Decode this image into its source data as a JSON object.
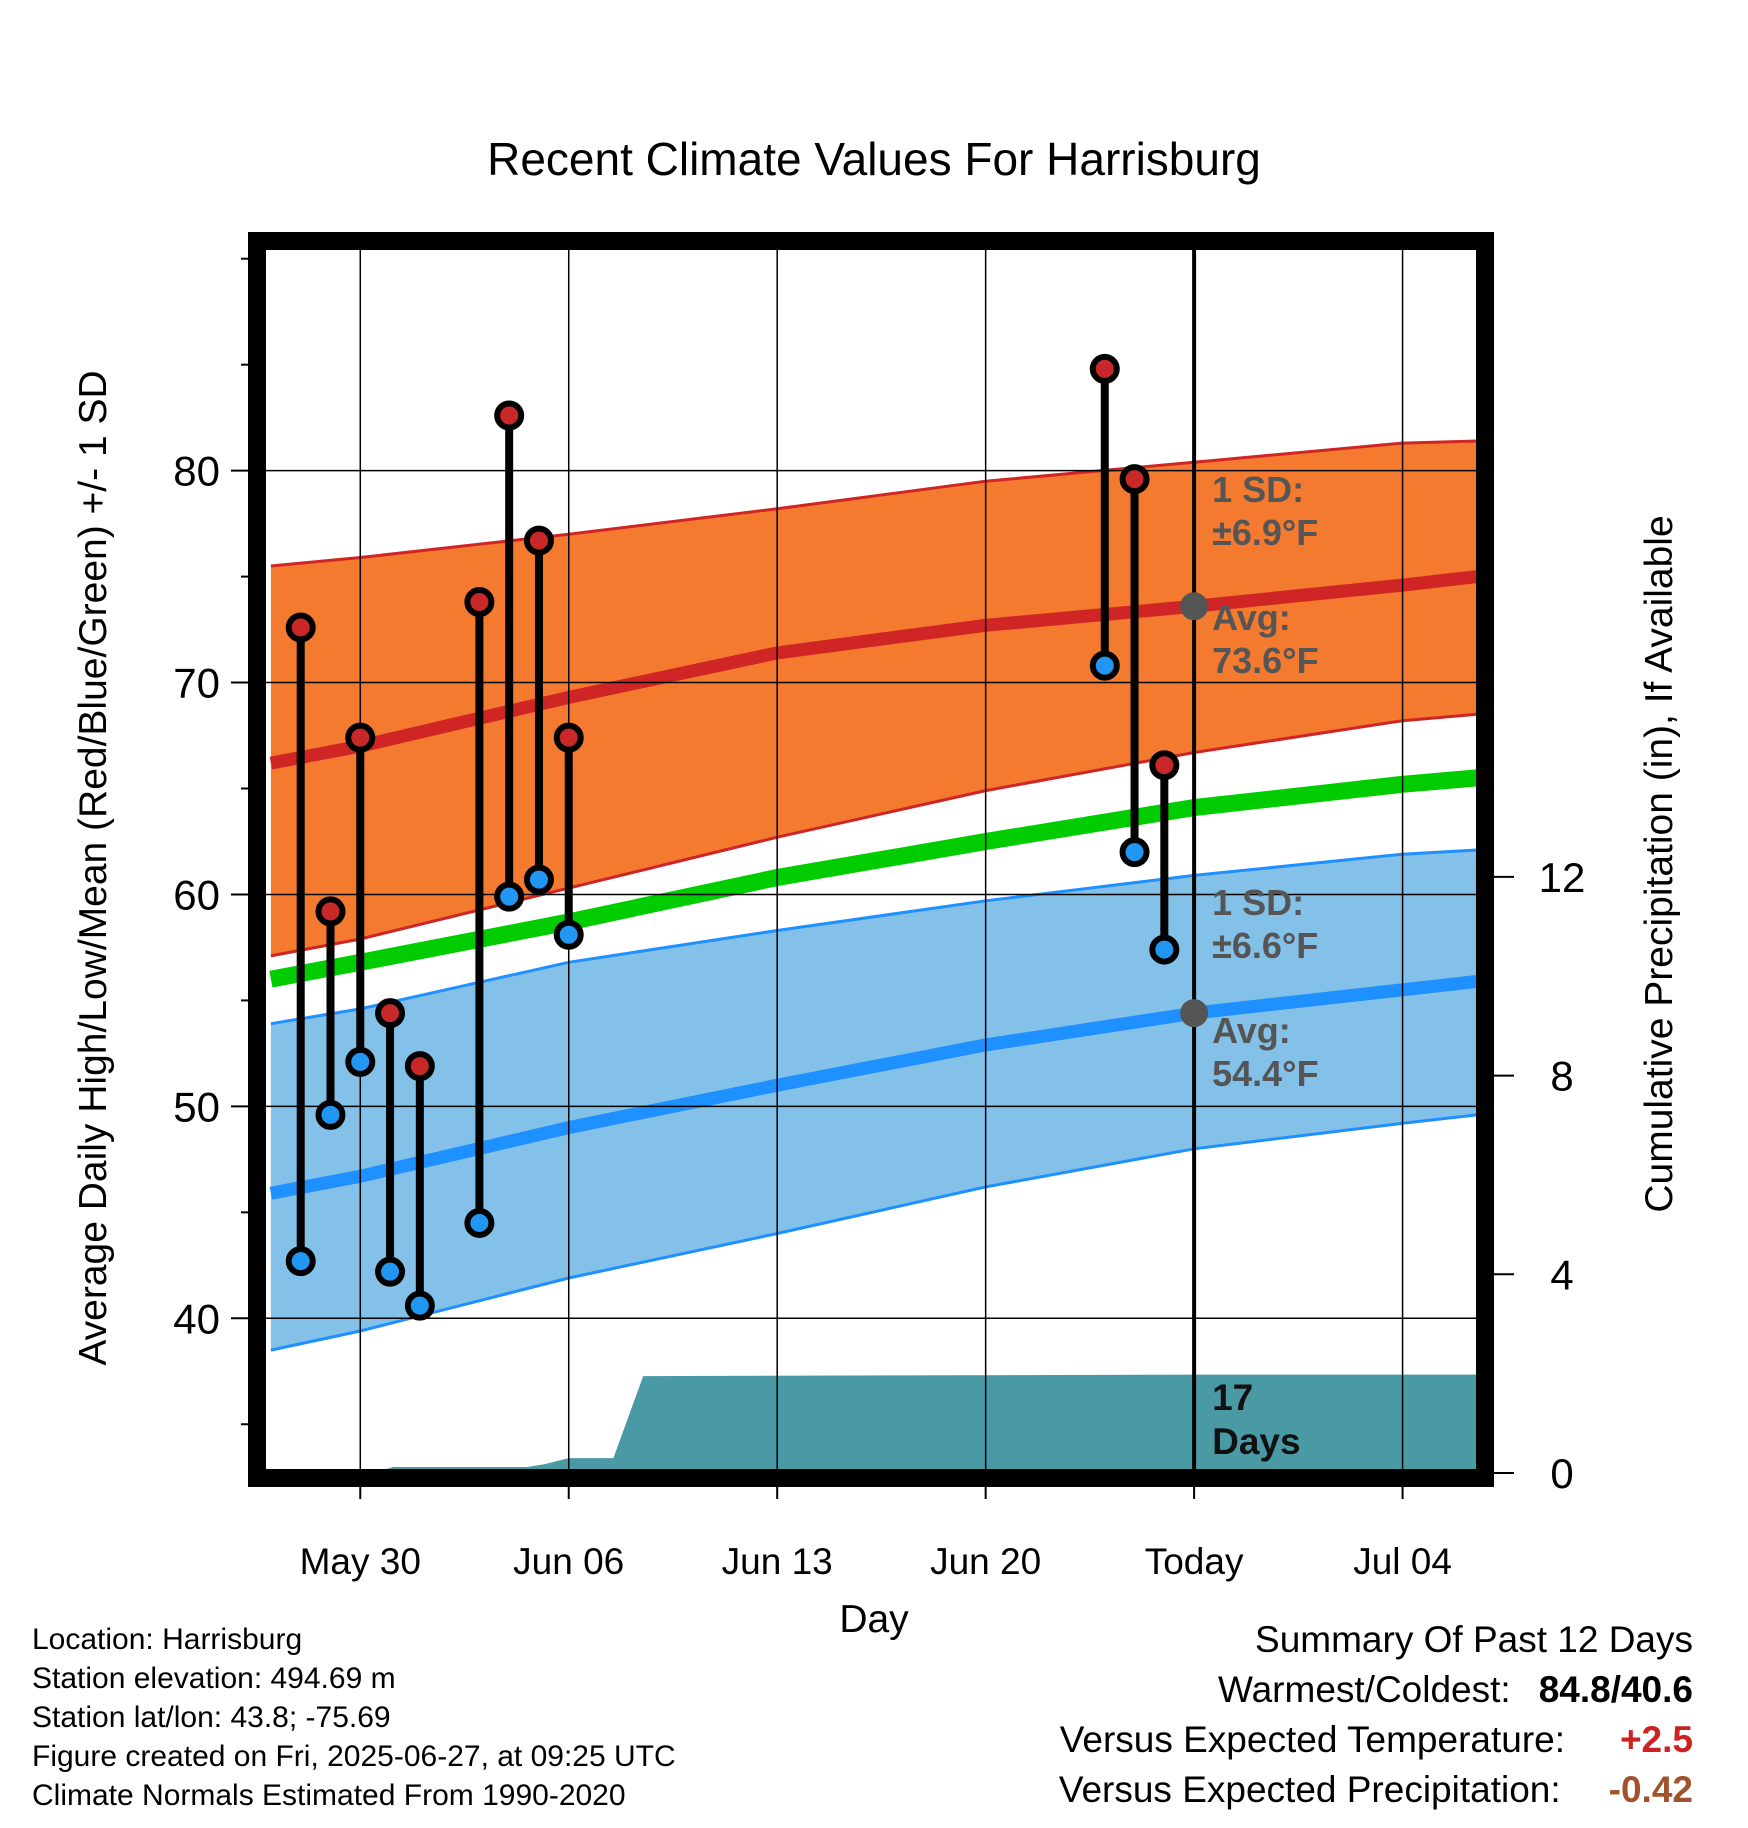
{
  "chart_data": {
    "type": "line",
    "title": "Recent Climate Values For Harrisburg",
    "xlabel": "Day",
    "ylabel": "Average Daily High/Low/Mean (Red/Blue/Green) +/- 1 SD",
    "y2label": "Cumulative Precipitation (in), If Available",
    "xticks": [
      {
        "label": "May 30",
        "day": 0
      },
      {
        "label": "Jun 06",
        "day": 7
      },
      {
        "label": "Jun 13",
        "day": 14
      },
      {
        "label": "Jun 20",
        "day": 21
      },
      {
        "label": "Today",
        "day": 28
      },
      {
        "label": "Jul 04",
        "day": 35
      }
    ],
    "xlim": [
      -3.3,
      37.6
    ],
    "yticks": [
      40,
      50,
      60,
      70,
      80
    ],
    "ylim": [
      32.7,
      90.6
    ],
    "y2ticks": [
      0,
      4,
      8,
      12
    ],
    "y2lim": [
      0,
      24.7
    ],
    "today_day": 28,
    "normals": {
      "days": [
        -3,
        0,
        7,
        14,
        21,
        28,
        35,
        37.5
      ],
      "high_avg": [
        66.2,
        67.0,
        69.3,
        71.4,
        72.7,
        73.6,
        74.6,
        75.0
      ],
      "high_upper": [
        75.5,
        75.9,
        77.0,
        78.2,
        79.5,
        80.4,
        81.3,
        81.4
      ],
      "high_lower": [
        57.1,
        57.9,
        60.3,
        62.7,
        64.9,
        66.7,
        68.2,
        68.5
      ],
      "mean_avg": [
        56.0,
        56.8,
        58.7,
        60.8,
        62.5,
        64.1,
        65.2,
        65.5
      ],
      "low_avg": [
        45.9,
        46.7,
        49.0,
        51.0,
        52.9,
        54.4,
        55.5,
        55.9
      ],
      "low_upper": [
        53.9,
        54.6,
        56.8,
        58.3,
        59.7,
        60.9,
        61.9,
        62.1
      ],
      "low_lower": [
        38.5,
        39.4,
        41.9,
        44.0,
        46.2,
        48.0,
        49.2,
        49.6
      ]
    },
    "observations": [
      {
        "day": -2,
        "high": 72.6,
        "low": 42.7
      },
      {
        "day": -1,
        "high": 59.2,
        "low": 49.6
      },
      {
        "day": 0,
        "high": 67.4,
        "low": 52.1
      },
      {
        "day": 1,
        "high": 54.4,
        "low": 42.2
      },
      {
        "day": 2,
        "high": 51.9,
        "low": 40.6
      },
      {
        "day": 4,
        "high": 73.8,
        "low": 44.5
      },
      {
        "day": 5,
        "high": 82.6,
        "low": 59.9
      },
      {
        "day": 6,
        "high": 76.7,
        "low": 60.7
      },
      {
        "day": 7,
        "high": 67.4,
        "low": 58.1
      },
      {
        "day": 25,
        "high": 84.8,
        "low": 70.8
      },
      {
        "day": 26,
        "high": 79.6,
        "low": 62.0
      },
      {
        "day": 27,
        "high": 66.1,
        "low": 57.4
      }
    ],
    "precip_cumulative": {
      "days": [
        -3.3,
        0.5,
        1.1,
        5.6,
        6.2,
        7.0,
        8.5,
        9.5,
        28,
        37.6
      ],
      "values": [
        0,
        0,
        0.12,
        0.12,
        0.18,
        0.3,
        0.3,
        1.95,
        1.98,
        1.98
      ]
    },
    "annotations": {
      "high_sd_label": "1 SD:",
      "high_sd_value": "±6.9°F",
      "high_avg_label": "Avg:",
      "high_avg_value": "73.6°F",
      "low_sd_label": "1 SD:",
      "low_sd_value": "±6.6°F",
      "low_avg_label": "Avg:",
      "low_avg_value": "54.4°F",
      "days_count": "17",
      "days_word": "Days"
    },
    "colors": {
      "high_band": "#F47A30",
      "high_line": "#D02525",
      "mean_line": "#00CC00",
      "low_band": "#84C1E8",
      "low_line": "#1E90FF",
      "precip": "#4A9AA5",
      "high_marker": "#C82828",
      "low_marker": "#2196F3",
      "annotation_text": "#555555"
    }
  },
  "footer": {
    "location": "Location: Harrisburg",
    "elevation": "Station elevation: 494.69 m",
    "latlon": "Station lat/lon: 43.8; -75.69",
    "created": "Figure created on Fri, 2025-06-27, at 09:25 UTC",
    "normals": "Climate Normals Estimated From 1990-2020"
  },
  "summary": {
    "title": "Summary Of Past 12 Days",
    "warmest_label": "Warmest/Coldest:",
    "warmest_value": "84.8/40.6",
    "temp_label": "Versus Expected Temperature:",
    "temp_value": "+2.5",
    "precip_label": "Versus Expected Precipitation:",
    "precip_value": "-0.42"
  }
}
